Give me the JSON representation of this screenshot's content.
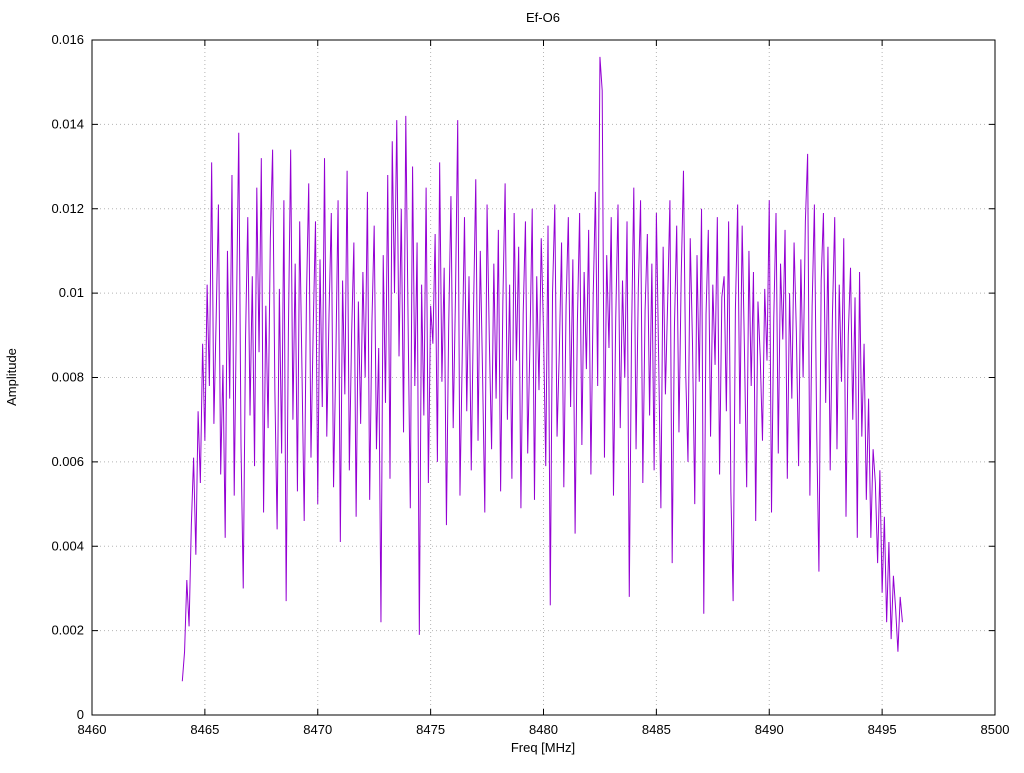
{
  "figure": {
    "title": "Ef-O6",
    "xlabel": "Freq [MHz]",
    "ylabel": "Amplitude"
  },
  "chart_data": {
    "type": "line",
    "title": "Ef-O6",
    "xlabel": "Freq [MHz]",
    "ylabel": "Amplitude",
    "xlim": [
      8460,
      8500
    ],
    "ylim": [
      0,
      0.016
    ],
    "grid": true,
    "grid_style": "dotted",
    "legend": "none",
    "line_color": "#9400d3",
    "grid_color": "#b5b5b5",
    "xticks": [
      8460,
      8465,
      8470,
      8475,
      8480,
      8485,
      8490,
      8495,
      8500
    ],
    "xtick_labels": [
      "8460",
      "8465",
      "8470",
      "8475",
      "8480",
      "8485",
      "8490",
      "8495",
      "8500"
    ],
    "yticks": [
      0,
      0.002,
      0.004,
      0.006,
      0.008,
      0.01,
      0.012,
      0.014,
      0.016
    ],
    "ytick_labels": [
      "0",
      "0.002",
      "0.004",
      "0.006",
      "0.008",
      "0.01",
      "0.012",
      "0.014",
      "0.016"
    ],
    "x_start": 8464.0,
    "x_step": 0.1,
    "values": [
      0.0008,
      0.0015,
      0.0032,
      0.0021,
      0.0045,
      0.0061,
      0.0038,
      0.0072,
      0.0055,
      0.0088,
      0.0065,
      0.0102,
      0.0078,
      0.0131,
      0.0069,
      0.0094,
      0.0121,
      0.0057,
      0.0083,
      0.0042,
      0.011,
      0.0075,
      0.0128,
      0.0052,
      0.0096,
      0.0138,
      0.0064,
      0.003,
      0.0089,
      0.0118,
      0.0071,
      0.0104,
      0.0059,
      0.0125,
      0.0086,
      0.0132,
      0.0048,
      0.0097,
      0.0068,
      0.0113,
      0.0134,
      0.0077,
      0.0044,
      0.0101,
      0.0062,
      0.0122,
      0.0027,
      0.0091,
      0.0134,
      0.007,
      0.0107,
      0.0053,
      0.0117,
      0.0082,
      0.0046,
      0.0099,
      0.0126,
      0.0061,
      0.0092,
      0.0117,
      0.005,
      0.0108,
      0.0073,
      0.0132,
      0.0066,
      0.0095,
      0.0119,
      0.0054,
      0.0084,
      0.0122,
      0.0041,
      0.0103,
      0.0076,
      0.0129,
      0.0058,
      0.009,
      0.0112,
      0.0047,
      0.0098,
      0.0069,
      0.0105,
      0.008,
      0.0124,
      0.0051,
      0.0093,
      0.0116,
      0.0063,
      0.0087,
      0.0022,
      0.0109,
      0.0074,
      0.0128,
      0.0056,
      0.0136,
      0.01,
      0.0141,
      0.0085,
      0.012,
      0.0067,
      0.0142,
      0.0094,
      0.0049,
      0.013,
      0.0078,
      0.0112,
      0.0019,
      0.0102,
      0.0071,
      0.0125,
      0.0055,
      0.0097,
      0.0088,
      0.0114,
      0.006,
      0.0131,
      0.0079,
      0.0106,
      0.0045,
      0.0092,
      0.0123,
      0.0068,
      0.0099,
      0.0141,
      0.0052,
      0.0085,
      0.0118,
      0.0072,
      0.0104,
      0.0058,
      0.0096,
      0.0127,
      0.0065,
      0.011,
      0.0081,
      0.0048,
      0.0121,
      0.0089,
      0.0063,
      0.0107,
      0.0075,
      0.0115,
      0.0053,
      0.0098,
      0.0126,
      0.007,
      0.0102,
      0.0056,
      0.0119,
      0.0084,
      0.0111,
      0.0049,
      0.0095,
      0.0117,
      0.0062,
      0.0088,
      0.012,
      0.0051,
      0.0104,
      0.0077,
      0.0113,
      0.0091,
      0.0059,
      0.0116,
      0.0026,
      0.01,
      0.0121,
      0.0066,
      0.0086,
      0.0112,
      0.0054,
      0.0097,
      0.0118,
      0.0073,
      0.0108,
      0.0043,
      0.0093,
      0.0119,
      0.0064,
      0.0105,
      0.0082,
      0.0115,
      0.0057,
      0.0099,
      0.0124,
      0.0078,
      0.0156,
      0.0148,
      0.0061,
      0.0109,
      0.0087,
      0.0118,
      0.0052,
      0.0094,
      0.0121,
      0.0068,
      0.0103,
      0.008,
      0.0117,
      0.0028,
      0.009,
      0.0125,
      0.0063,
      0.0101,
      0.0122,
      0.0055,
      0.0096,
      0.0114,
      0.0071,
      0.0107,
      0.0058,
      0.0119,
      0.0085,
      0.0049,
      0.0111,
      0.0076,
      0.0098,
      0.0122,
      0.0036,
      0.0092,
      0.0116,
      0.0067,
      0.0104,
      0.0129,
      0.0081,
      0.006,
      0.0113,
      0.0088,
      0.005,
      0.0109,
      0.0079,
      0.012,
      0.0024,
      0.0095,
      0.0115,
      0.0066,
      0.0102,
      0.0083,
      0.0118,
      0.0057,
      0.0099,
      0.0104,
      0.0072,
      0.0117,
      0.0053,
      0.0027,
      0.0096,
      0.0121,
      0.0069,
      0.0116,
      0.0087,
      0.0054,
      0.011,
      0.0078,
      0.0105,
      0.0046,
      0.0098,
      0.0085,
      0.0065,
      0.0101,
      0.0084,
      0.0122,
      0.0048,
      0.0094,
      0.0119,
      0.0062,
      0.0107,
      0.0089,
      0.0115,
      0.0056,
      0.01,
      0.0075,
      0.0112,
      0.0091,
      0.0059,
      0.0108,
      0.008,
      0.0117,
      0.0133,
      0.0052,
      0.0097,
      0.0121,
      0.0068,
      0.0034,
      0.0103,
      0.0119,
      0.0074,
      0.0111,
      0.0058,
      0.0095,
      0.0118,
      0.0063,
      0.0102,
      0.0079,
      0.0113,
      0.0047,
      0.009,
      0.0106,
      0.007,
      0.0099,
      0.0042,
      0.0105,
      0.0066,
      0.0088,
      0.0051,
      0.0075,
      0.0042,
      0.0063,
      0.0055,
      0.0036,
      0.0058,
      0.0029,
      0.0047,
      0.0022,
      0.0041,
      0.0018,
      0.0033,
      0.0025,
      0.0015,
      0.0028,
      0.0022
    ]
  }
}
